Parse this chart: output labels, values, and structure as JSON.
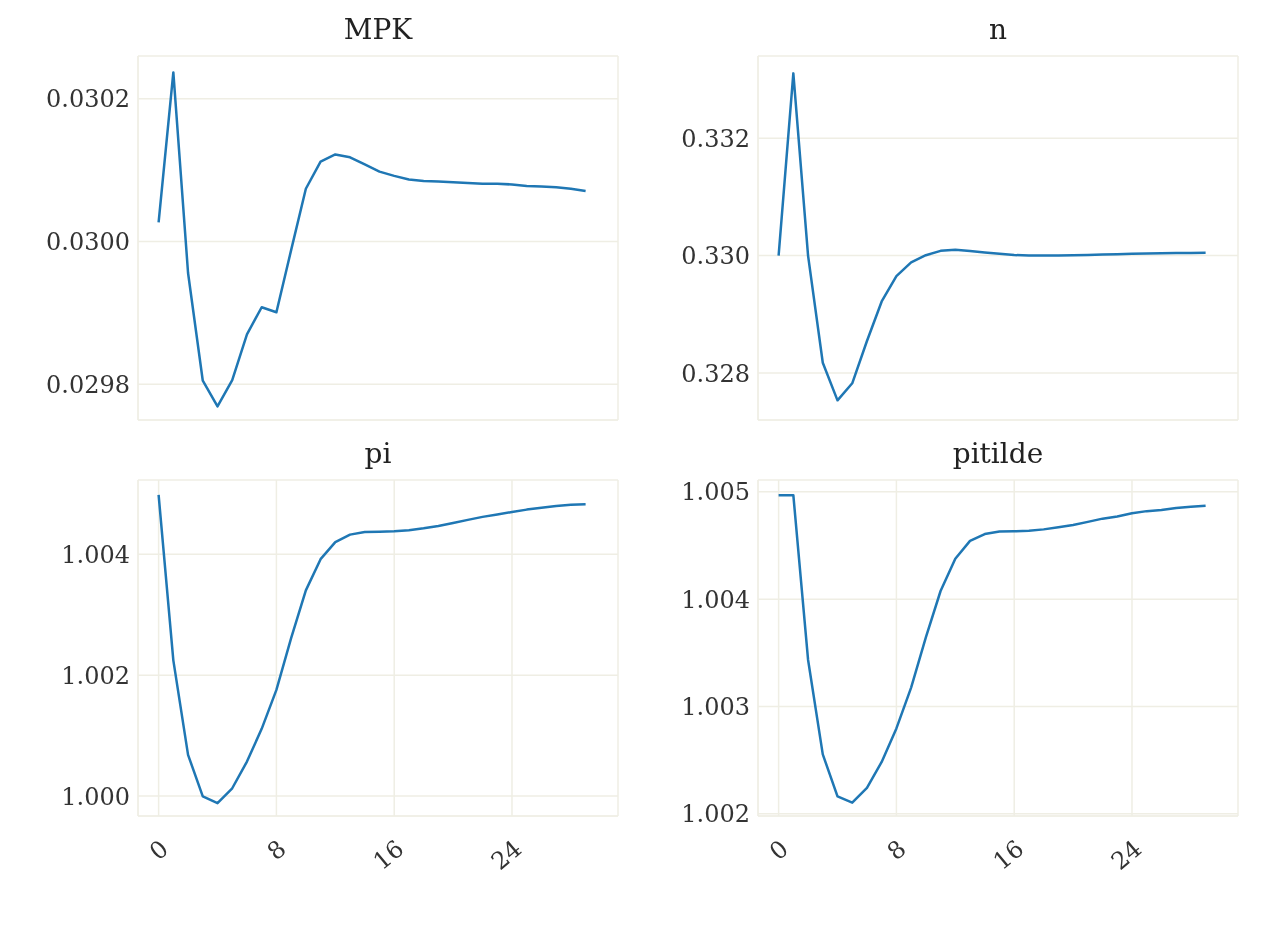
{
  "chart_data": [
    {
      "type": "line",
      "title": "MPK",
      "x": [
        0,
        1,
        2,
        3,
        4,
        5,
        6,
        7,
        8,
        9,
        10,
        11,
        12,
        13,
        14,
        15,
        16,
        17,
        18,
        19,
        20,
        21,
        22,
        23,
        24,
        25,
        26,
        27,
        28,
        29
      ],
      "series": [
        {
          "color": "#1f77b4",
          "values": [
            0.030027,
            0.030237,
            0.029956,
            0.029805,
            0.029769,
            0.029806,
            0.02987,
            0.029908,
            0.029901,
            0.029988,
            0.030074,
            0.030112,
            0.030122,
            0.030118,
            0.030108,
            0.030098,
            0.030092,
            0.030087,
            0.030085,
            0.030084,
            0.030083,
            0.030082,
            0.030081,
            0.030081,
            0.03008,
            0.030078,
            0.030077,
            0.030076,
            0.030074,
            0.030071
          ]
        }
      ],
      "xlim": [
        -1.4,
        31.2
      ],
      "xticks": [
        0,
        8,
        16,
        24
      ],
      "ylim": [
        0.02975,
        0.03026
      ],
      "yticks": [
        0.0298,
        {
          "value": 0.03,
          "label": "0.0300"
        },
        0.0302
      ],
      "grid": true,
      "tick_labels": "y"
    },
    {
      "type": "line",
      "title": "n",
      "x": [
        0,
        1,
        2,
        3,
        4,
        5,
        6,
        7,
        8,
        9,
        10,
        11,
        12,
        13,
        14,
        15,
        16,
        17,
        18,
        19,
        20,
        21,
        22,
        23,
        24,
        25,
        26,
        27,
        28,
        29
      ],
      "series": [
        {
          "color": "#1f77b4",
          "values": [
            0.33,
            0.333104,
            0.33,
            0.328175,
            0.327535,
            0.327825,
            0.328545,
            0.329219,
            0.32965,
            0.329886,
            0.330007,
            0.330081,
            0.330101,
            0.33008,
            0.330054,
            0.33003,
            0.33001,
            0.33,
            0.33,
            0.330002,
            0.330007,
            0.330012,
            0.330018,
            0.330024,
            0.33003,
            0.330035,
            0.33004,
            0.330044,
            0.330046,
            0.330047
          ]
        }
      ],
      "xlim": [
        -1.4,
        31.2
      ],
      "xticks": [
        0,
        8,
        16,
        24
      ],
      "ylim": [
        0.3272,
        0.3334
      ],
      "yticks": [
        0.328,
        {
          "value": 0.33,
          "label": "0.330"
        },
        0.332
      ],
      "grid": true,
      "tick_labels": "y"
    },
    {
      "type": "line",
      "title": "pi",
      "x": [
        0,
        1,
        2,
        3,
        4,
        5,
        6,
        7,
        8,
        9,
        10,
        11,
        12,
        13,
        14,
        15,
        16,
        17,
        18,
        19,
        20,
        21,
        22,
        23,
        24,
        25,
        26,
        27,
        28,
        29
      ],
      "series": [
        {
          "color": "#1f77b4",
          "values": [
            1.004983,
            1.002246,
            1.000682,
            0.999994,
            0.999883,
            1.000129,
            1.000571,
            1.001112,
            1.001757,
            1.002614,
            1.003404,
            1.00392,
            1.004203,
            1.004326,
            1.004369,
            1.004372,
            1.00438,
            1.0044,
            1.00443,
            1.00447,
            1.00452,
            1.00457,
            1.00462,
            1.00466,
            1.0047,
            1.00474,
            1.00477,
            1.0048,
            1.00482,
            1.00483
          ]
        }
      ],
      "xlim": [
        -1.4,
        31.2
      ],
      "xticks": [
        0,
        8,
        16,
        24
      ],
      "ylim": [
        0.99967,
        1.00523
      ],
      "yticks": [
        {
          "value": 1.0,
          "label": "1.000"
        },
        1.002,
        1.004
      ],
      "grid": true
    },
    {
      "type": "line",
      "title": "pitilde",
      "x": [
        0,
        1,
        2,
        3,
        4,
        5,
        6,
        7,
        8,
        9,
        10,
        11,
        12,
        13,
        14,
        15,
        16,
        17,
        18,
        19,
        20,
        21,
        22,
        23,
        24,
        25,
        26,
        27,
        28,
        29
      ],
      "series": [
        {
          "color": "#1f77b4",
          "values": [
            1.004969,
            1.004969,
            1.003436,
            1.002554,
            1.002163,
            1.002104,
            1.002242,
            1.002484,
            1.002796,
            1.003176,
            1.003644,
            1.004076,
            1.004377,
            1.004543,
            1.004606,
            1.00463,
            1.004632,
            1.004637,
            1.00465,
            1.00467,
            1.00469,
            1.00472,
            1.00475,
            1.00477,
            1.0048,
            1.00482,
            1.00483,
            1.00485,
            1.00486,
            1.00487
          ]
        }
      ],
      "xlim": [
        -1.4,
        31.2
      ],
      "xticks": [
        0,
        8,
        16,
        24
      ],
      "ylim": [
        1.00198,
        1.00511
      ],
      "yticks": [
        1.002,
        1.003,
        1.004,
        1.005
      ],
      "grid": true
    }
  ]
}
